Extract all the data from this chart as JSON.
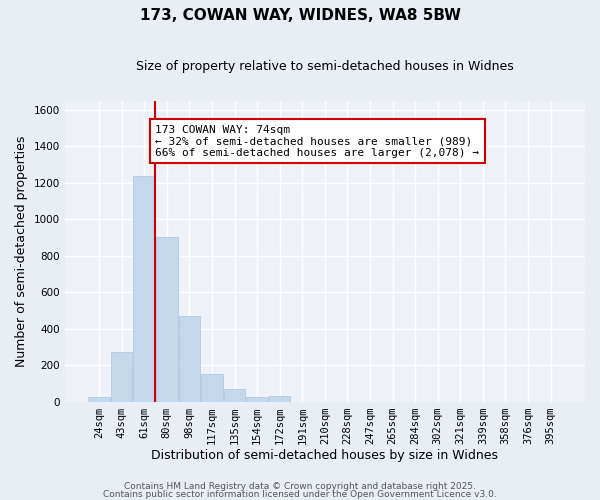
{
  "title": "173, COWAN WAY, WIDNES, WA8 5BW",
  "subtitle": "Size of property relative to semi-detached houses in Widnes",
  "xlabel": "Distribution of semi-detached houses by size in Widnes",
  "ylabel": "Number of semi-detached properties",
  "bin_labels": [
    "24sqm",
    "43sqm",
    "61sqm",
    "80sqm",
    "98sqm",
    "117sqm",
    "135sqm",
    "154sqm",
    "172sqm",
    "191sqm",
    "210sqm",
    "228sqm",
    "247sqm",
    "265sqm",
    "284sqm",
    "302sqm",
    "321sqm",
    "339sqm",
    "358sqm",
    "376sqm",
    "395sqm"
  ],
  "bin_values": [
    25,
    270,
    1235,
    900,
    470,
    150,
    70,
    25,
    30,
    0,
    0,
    0,
    0,
    0,
    0,
    0,
    0,
    0,
    0,
    0,
    0
  ],
  "bar_color": "#c4d8ec",
  "bar_edge_color": "#a8c4e0",
  "vline_x": 2.5,
  "vline_color": "#cc0000",
  "annotation_text": "173 COWAN WAY: 74sqm\n← 32% of semi-detached houses are smaller (989)\n66% of semi-detached houses are larger (2,078) →",
  "annotation_box_color": "#ffffff",
  "annotation_box_edge": "#cc0000",
  "ylim": [
    0,
    1650
  ],
  "yticks": [
    0,
    200,
    400,
    600,
    800,
    1000,
    1200,
    1400,
    1600
  ],
  "footer1": "Contains HM Land Registry data © Crown copyright and database right 2025.",
  "footer2": "Contains public sector information licensed under the Open Government Licence v3.0.",
  "bg_color": "#e8eef4",
  "plot_bg_color": "#eef2f8",
  "grid_color": "#ffffff",
  "title_fontsize": 11,
  "subtitle_fontsize": 9,
  "tick_fontsize": 7.5,
  "axis_label_fontsize": 9,
  "annotation_fontsize": 8,
  "footer_fontsize": 6.5
}
